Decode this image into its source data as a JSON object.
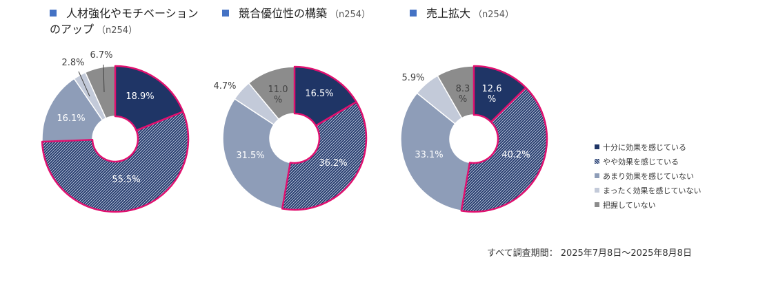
{
  "colors": {
    "title_marker": "#4472c4",
    "highlight_outline": "#e0106f",
    "label_light": "#ffffff",
    "label_dark": "#404040"
  },
  "legend": [
    {
      "label": "十分に効果を感じている",
      "color": "#1f3566",
      "pattern": "solid"
    },
    {
      "label": "やや効果を感じている",
      "color": "#1f3566",
      "pattern": "hatch"
    },
    {
      "label": "あまり効果を感じていない",
      "color": "#8e9db8",
      "pattern": "solid"
    },
    {
      "label": "まったく効果を感じていない",
      "color": "#c3cad9",
      "pattern": "solid"
    },
    {
      "label": "把握していない",
      "color": "#8c8c8c",
      "pattern": "solid"
    }
  ],
  "footer": "すべて調査期間： 2025年7月8日～2025年8月8日",
  "chart_data": [
    {
      "type": "pie",
      "title_line1": "人材強化やモチベーション",
      "title_line2": "のアップ",
      "sample": "（n254）",
      "categories": [
        "十分に効果を感じている",
        "やや効果を感じている",
        "あまり効果を感じていない",
        "まったく効果を感じていない",
        "把握していない"
      ],
      "values": [
        18.9,
        55.5,
        16.1,
        2.8,
        6.7
      ],
      "labels": [
        "18.9%",
        "55.5%",
        "16.1%",
        "2.8%",
        "6.7%"
      ],
      "highlighted": [
        0,
        1
      ]
    },
    {
      "type": "pie",
      "title_line1": "競合優位性の構築",
      "sample": "（n254）",
      "categories": [
        "十分に効果を感じている",
        "やや効果を感じている",
        "あまり効果を感じていない",
        "まったく効果を感じていない",
        "把握していない"
      ],
      "values": [
        16.5,
        36.2,
        31.5,
        4.7,
        11.0
      ],
      "labels": [
        "16.5%",
        "36.2%",
        "31.5%",
        "4.7%",
        "11.0\n%"
      ],
      "highlighted": [
        0,
        1
      ]
    },
    {
      "type": "pie",
      "title_line1": "売上拡大",
      "sample": "（n254）",
      "categories": [
        "十分に効果を感じている",
        "やや効果を感じている",
        "あまり効果を感じていない",
        "まったく効果を感じていない",
        "把握していない"
      ],
      "values": [
        12.6,
        40.2,
        33.1,
        5.9,
        8.3
      ],
      "labels": [
        "12.6\n%",
        "40.2%",
        "33.1%",
        "5.9%",
        "8.3\n%"
      ],
      "highlighted": [
        0,
        1
      ]
    }
  ]
}
